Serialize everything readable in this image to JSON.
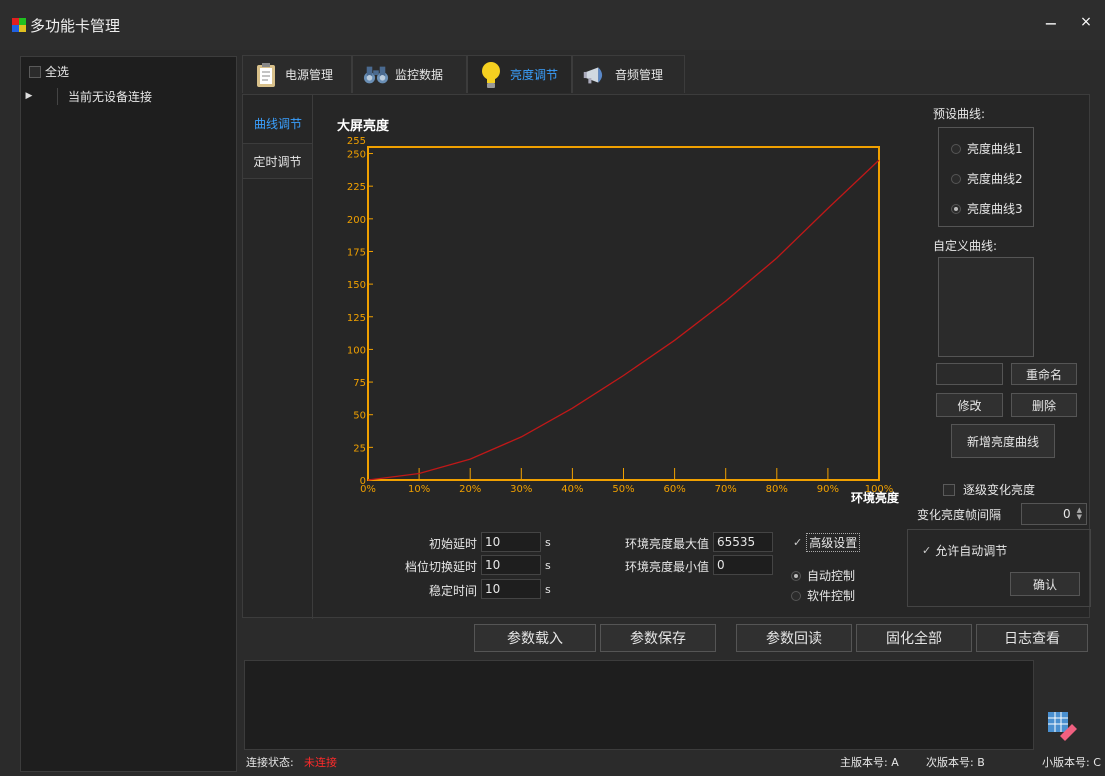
{
  "window": {
    "title": "多功能卡管理",
    "minimize": "−",
    "close": "×"
  },
  "left": {
    "select_all": "全选",
    "no_device": "当前无设备连接"
  },
  "tabs": [
    {
      "label": "电源管理",
      "icon": "clipboard-icon"
    },
    {
      "label": "监控数据",
      "icon": "binoculars-icon"
    },
    {
      "label": "亮度调节",
      "icon": "lightbulb-icon",
      "active": true
    },
    {
      "label": "音频管理",
      "icon": "megaphone-icon"
    }
  ],
  "side_tabs": [
    {
      "label": "曲线调节",
      "active": true
    },
    {
      "label": "定时调节"
    }
  ],
  "chart_data": {
    "type": "line",
    "ylabel": "大屏亮度",
    "xlabel": "环境亮度",
    "xlim": [
      0,
      100
    ],
    "ylim": [
      0,
      255
    ],
    "x_ticks": [
      "0%",
      "10%",
      "20%",
      "30%",
      "40%",
      "50%",
      "60%",
      "70%",
      "80%",
      "90%",
      "100%"
    ],
    "y_ticks": [
      "0",
      "25",
      "50",
      "75",
      "100",
      "125",
      "150",
      "175",
      "200",
      "225",
      "250",
      "255"
    ],
    "series": [
      {
        "x": [
          0,
          10,
          20,
          30,
          40,
          50,
          60,
          70,
          80,
          90,
          100
        ],
        "y": [
          0,
          5,
          16,
          33,
          55,
          80,
          107,
          137,
          170,
          208,
          245
        ]
      }
    ],
    "colors": {
      "axis": "#f0a000",
      "curve": "#c01818"
    }
  },
  "preset": {
    "title": "预设曲线:",
    "options": [
      "亮度曲线1",
      "亮度曲线2",
      "亮度曲线3"
    ],
    "selected": 2
  },
  "custom": {
    "title": "自定义曲线:",
    "rename": "重命名",
    "modify": "修改",
    "delete": "删除",
    "add": "新增亮度曲线"
  },
  "gradual": {
    "label": "逐级变化亮度",
    "interval_label": "变化亮度帧间隔",
    "interval_value": "0"
  },
  "params": {
    "initial_delay": {
      "label": "初始延时",
      "value": "10",
      "unit": "s"
    },
    "switch_delay": {
      "label": "档位切换延时",
      "value": "10",
      "unit": "s"
    },
    "stable_time": {
      "label": "稳定时间",
      "value": "10",
      "unit": "s"
    },
    "env_max": {
      "label": "环境亮度最大值",
      "value": "65535"
    },
    "env_min": {
      "label": "环境亮度最小值",
      "value": "0"
    }
  },
  "advanced": {
    "label": "高级设置",
    "auto": "自动控制",
    "software": "软件控制",
    "allow_auto": "允许自动调节",
    "confirm": "确认"
  },
  "actions": [
    "参数载入",
    "参数保存",
    "参数回读",
    "固化全部",
    "日志查看"
  ],
  "status": {
    "conn_label": "连接状态:",
    "conn_state": "未连接",
    "major": "主版本号: A",
    "minor": "次版本号: B",
    "small": "小版本号: C"
  }
}
